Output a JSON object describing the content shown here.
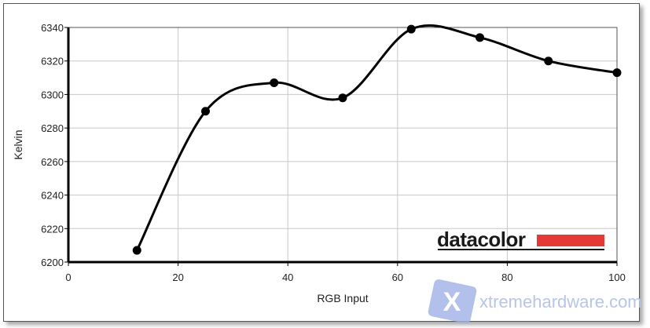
{
  "chart_data": {
    "type": "line",
    "title": "",
    "xlabel": "RGB Input",
    "ylabel": "Kelvin",
    "xlim": [
      0,
      100
    ],
    "ylim": [
      6200,
      6340
    ],
    "xticks": [
      0,
      20,
      40,
      60,
      80,
      100
    ],
    "yticks": [
      6200,
      6220,
      6240,
      6260,
      6280,
      6300,
      6320,
      6340
    ],
    "grid": true,
    "smooth": true,
    "series": [
      {
        "x": [
          12.5,
          25,
          37.5,
          50,
          62.5,
          75,
          87.5,
          100
        ],
        "values": [
          6207,
          6290,
          6307,
          6298,
          6339,
          6334,
          6320,
          6313
        ]
      }
    ],
    "line_color": "#000000",
    "logo": {
      "text": "datacolor",
      "bar_color": "#e53935"
    },
    "watermark": {
      "text": "xtremehardware.com",
      "color": "#b8c4e8"
    }
  }
}
